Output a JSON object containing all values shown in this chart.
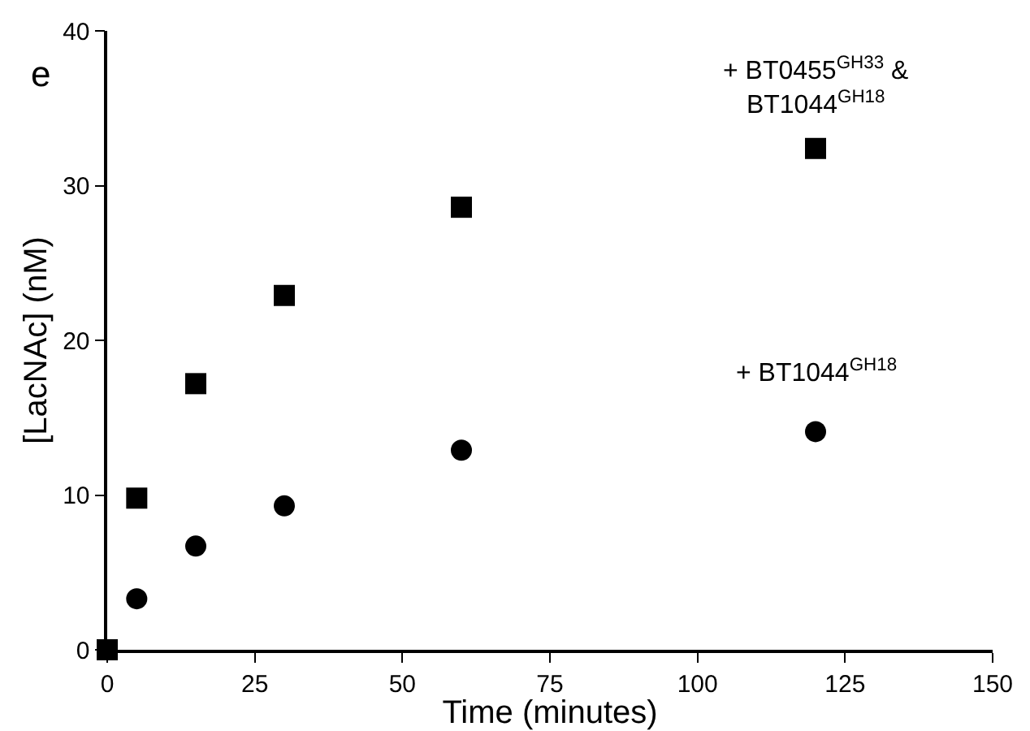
{
  "chart_data": {
    "type": "scatter",
    "xlabel": "Time (minutes)",
    "ylabel": "[LacNAc] (nM)",
    "x": [
      0,
      5,
      15,
      30,
      60,
      120
    ],
    "series": [
      {
        "color": "#000000",
        "marker": "square",
        "values": [
          0,
          9.8,
          17.2,
          22.9,
          28.6,
          32.4
        ]
      },
      {
        "color": "#000000",
        "marker": "circle",
        "values": [
          null,
          3.3,
          6.7,
          9.3,
          12.9,
          14.1
        ]
      }
    ],
    "xlim": [
      0,
      150
    ],
    "xticks": [
      0,
      25,
      50,
      75,
      100,
      125,
      150
    ],
    "ylim": [
      0,
      40
    ],
    "yticks": [
      0,
      10,
      20,
      30,
      40
    ],
    "grid": false,
    "annotations": [
      "e",
      "+ BT0455$^{GH33}$ &\nBT1044$^{GH18}$",
      "+ BT1044$^{GH18}$"
    ]
  }
}
